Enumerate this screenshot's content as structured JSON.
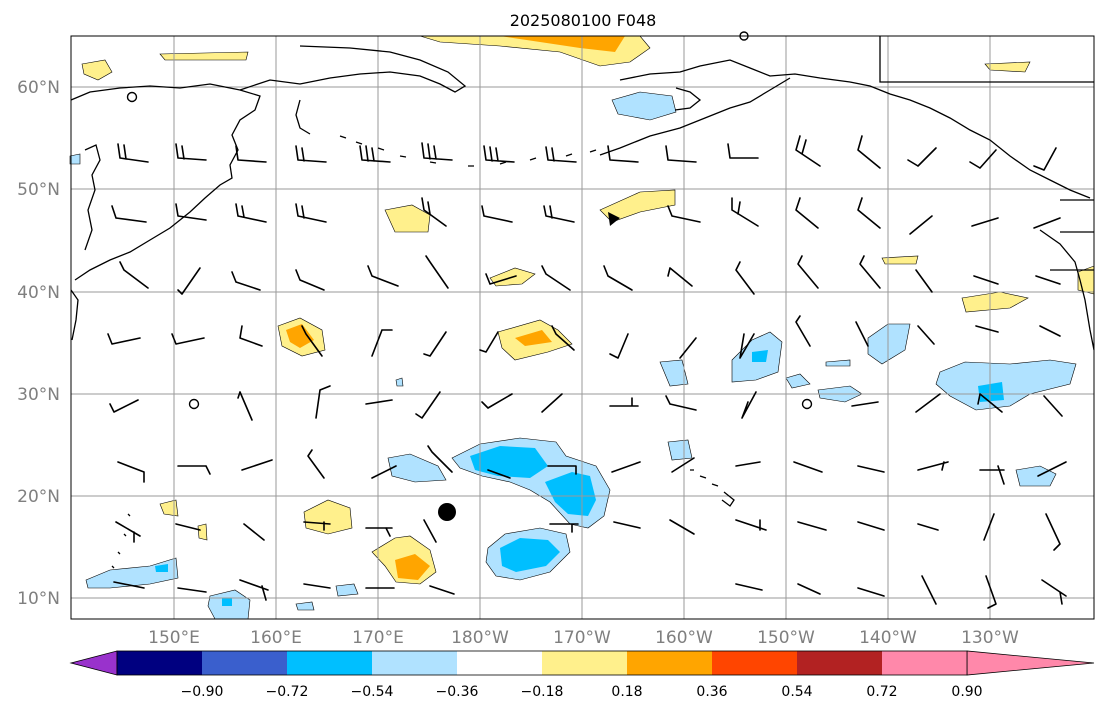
{
  "map": {
    "title": "2025080100 F048",
    "lat_labels": [
      "60°N",
      "50°N",
      "40°N",
      "30°N",
      "20°N",
      "10°N"
    ],
    "lon_labels": [
      "150°E",
      "160°E",
      "170°E",
      "180°W",
      "170°W",
      "160°W",
      "150°W",
      "140°W",
      "130°W"
    ],
    "colorbar": {
      "colors": [
        "#9932cc",
        "#000080",
        "#3a5fcd",
        "#00bfff",
        "#b0e2ff",
        "#ffffff",
        "#fff08c",
        "#ffa500",
        "#ff4500",
        "#b22222",
        "#ff88aa"
      ],
      "labels": [
        "−0.90",
        "−0.72",
        "−0.54",
        "−0.36",
        "−0.18",
        "0.18",
        "0.36",
        "0.54",
        "0.72",
        "0.90"
      ]
    },
    "marker_icon": "storm-center-dot-icon"
  }
}
